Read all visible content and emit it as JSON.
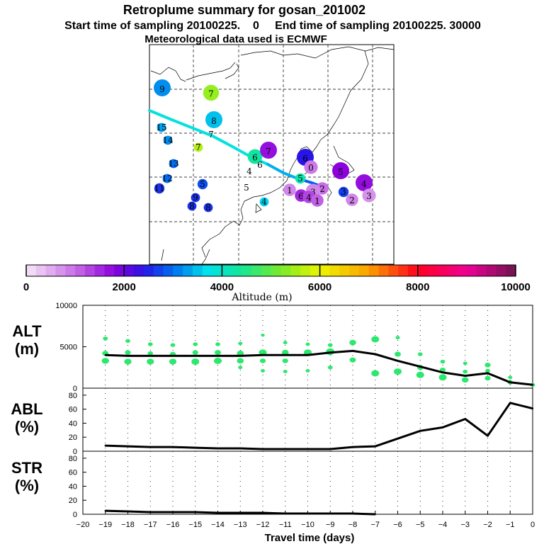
{
  "title": "Retroplume summary for gosan_201002",
  "subtitle": "Start time of sampling 20100225.    0     End time of sampling 20100225. 30000",
  "met_line": "Meteorological data used is ECMWF",
  "colorbar": {
    "label": "Altitude (m)",
    "ticks": [
      "0",
      "2000",
      "4000",
      "6000",
      "8000",
      "10000"
    ],
    "range": [
      0,
      10000
    ]
  },
  "map": {
    "labels": [
      {
        "text": "9",
        "alt": 3200,
        "r": 1.0
      },
      {
        "text": "7",
        "alt": 5400,
        "r": 0.9
      },
      {
        "text": "8",
        "alt": 3500,
        "r": 1.0
      },
      {
        "text": "15",
        "alt": 3300,
        "r": 0.3
      },
      {
        "text": "7",
        "alt": 4000,
        "r": 0.0
      },
      {
        "text": "14",
        "alt": 3200,
        "r": 0.3
      },
      {
        "text": "7",
        "alt": 5600,
        "r": 0.3
      },
      {
        "text": "6",
        "alt": 4300,
        "r": 0.8
      },
      {
        "text": "7",
        "alt": 1700,
        "r": 1.0
      },
      {
        "text": "6",
        "alt": 4000,
        "r": 0.0
      },
      {
        "text": "6",
        "alt": 2400,
        "r": 1.0
      },
      {
        "text": "0",
        "alt": 900,
        "r": 0.7
      },
      {
        "text": "5",
        "alt": 1800,
        "r": 1.0
      },
      {
        "text": "4",
        "alt": 1700,
        "r": 1.0
      },
      {
        "text": "13",
        "alt": 3000,
        "r": 0.3
      },
      {
        "text": "4",
        "alt": 4000,
        "r": 0.0
      },
      {
        "text": "12",
        "alt": 3000,
        "r": 0.3
      },
      {
        "text": "5",
        "alt": 4200,
        "r": 0.4
      },
      {
        "text": "5",
        "alt": 3900,
        "r": 0.0
      },
      {
        "text": "5",
        "alt": 2800,
        "r": 0.4
      },
      {
        "text": "11",
        "alt": 2600,
        "r": 0.4
      },
      {
        "text": "2",
        "alt": 1000,
        "r": 0.6
      },
      {
        "text": "3",
        "alt": 2700,
        "r": 0.4
      },
      {
        "text": "2",
        "alt": 800,
        "r": 0.6
      },
      {
        "text": "3",
        "alt": 700,
        "r": 0.7
      },
      {
        "text": "3",
        "alt": 800,
        "r": 0.8
      },
      {
        "text": "9",
        "alt": 2600,
        "r": 0.3
      },
      {
        "text": "4",
        "alt": 3600,
        "r": 0.3
      },
      {
        "text": "8",
        "alt": 2600,
        "r": 0.3
      },
      {
        "text": "8",
        "alt": 2600,
        "r": 0.3
      },
      {
        "text": "6",
        "alt": 1500,
        "r": 0.6
      },
      {
        "text": "4",
        "alt": 1300,
        "r": 0.6
      },
      {
        "text": "1",
        "alt": 1100,
        "r": 0.6
      },
      {
        "text": "1",
        "alt": 800,
        "r": 0.6
      }
    ]
  },
  "chart_data": [
    {
      "type": "scatter-line",
      "panel_label": "ALT\n(m)",
      "xlabel": "Travel time (days)",
      "ylim": [
        0,
        10000
      ],
      "yticks": [
        "0",
        "5000",
        "10000"
      ],
      "x": [
        -19,
        -18,
        -17,
        -16,
        -15,
        -14,
        -13,
        -12,
        -11,
        -10,
        -9,
        -8,
        -7,
        -6,
        -5,
        -4,
        -3,
        -2,
        -1,
        0
      ],
      "mean_altitude": [
        4000,
        3900,
        3900,
        3900,
        3900,
        3900,
        3900,
        4000,
        4000,
        4000,
        4300,
        4500,
        4100,
        3300,
        2600,
        1900,
        1500,
        1800,
        700,
        400
      ],
      "cluster_points": [
        {
          "x": -19,
          "y": 6000,
          "size": 0.4
        },
        {
          "x": -19,
          "y": 4200,
          "size": 0.7
        },
        {
          "x": -19,
          "y": 3300,
          "size": 0.9
        },
        {
          "x": -18,
          "y": 5700,
          "size": 0.4
        },
        {
          "x": -18,
          "y": 4300,
          "size": 0.6
        },
        {
          "x": -18,
          "y": 3200,
          "size": 0.9
        },
        {
          "x": -17,
          "y": 5300,
          "size": 0.4
        },
        {
          "x": -17,
          "y": 4200,
          "size": 0.5
        },
        {
          "x": -17,
          "y": 3200,
          "size": 0.9
        },
        {
          "x": -16,
          "y": 5200,
          "size": 0.4
        },
        {
          "x": -16,
          "y": 4100,
          "size": 0.6
        },
        {
          "x": -16,
          "y": 3200,
          "size": 0.9
        },
        {
          "x": -15,
          "y": 5300,
          "size": 0.4
        },
        {
          "x": -15,
          "y": 4300,
          "size": 0.6
        },
        {
          "x": -15,
          "y": 3200,
          "size": 1.0
        },
        {
          "x": -14,
          "y": 5300,
          "size": 0.4
        },
        {
          "x": -14,
          "y": 4300,
          "size": 0.7
        },
        {
          "x": -14,
          "y": 3300,
          "size": 1.0
        },
        {
          "x": -13,
          "y": 5400,
          "size": 0.3
        },
        {
          "x": -13,
          "y": 4200,
          "size": 0.8
        },
        {
          "x": -13,
          "y": 3300,
          "size": 0.8
        },
        {
          "x": -13,
          "y": 2500,
          "size": 0.3
        },
        {
          "x": -12,
          "y": 6400,
          "size": 0.2
        },
        {
          "x": -12,
          "y": 4300,
          "size": 1.0
        },
        {
          "x": -12,
          "y": 3300,
          "size": 0.6
        },
        {
          "x": -12,
          "y": 2100,
          "size": 0.3
        },
        {
          "x": -11,
          "y": 5500,
          "size": 0.3
        },
        {
          "x": -11,
          "y": 4300,
          "size": 0.8
        },
        {
          "x": -11,
          "y": 3300,
          "size": 0.6
        },
        {
          "x": -11,
          "y": 2000,
          "size": 0.3
        },
        {
          "x": -10,
          "y": 5300,
          "size": 0.3
        },
        {
          "x": -10,
          "y": 4300,
          "size": 1.0
        },
        {
          "x": -10,
          "y": 2100,
          "size": 0.3
        },
        {
          "x": -9,
          "y": 5200,
          "size": 0.4
        },
        {
          "x": -9,
          "y": 4400,
          "size": 1.1
        },
        {
          "x": -9,
          "y": 2500,
          "size": 0.4
        },
        {
          "x": -8,
          "y": 5500,
          "size": 0.8
        },
        {
          "x": -8,
          "y": 3400,
          "size": 0.7
        },
        {
          "x": -7,
          "y": 5900,
          "size": 1.0
        },
        {
          "x": -7,
          "y": 1800,
          "size": 1.0
        },
        {
          "x": -6,
          "y": 6100,
          "size": 0.3
        },
        {
          "x": -6,
          "y": 4100,
          "size": 0.7
        },
        {
          "x": -6,
          "y": 2000,
          "size": 1.0
        },
        {
          "x": -5,
          "y": 4100,
          "size": 0.4
        },
        {
          "x": -5,
          "y": 2500,
          "size": 0.7
        },
        {
          "x": -5,
          "y": 1600,
          "size": 1.0
        },
        {
          "x": -4,
          "y": 3200,
          "size": 0.4
        },
        {
          "x": -4,
          "y": 2200,
          "size": 0.6
        },
        {
          "x": -4,
          "y": 1300,
          "size": 1.0
        },
        {
          "x": -3,
          "y": 3000,
          "size": 0.3
        },
        {
          "x": -3,
          "y": 2000,
          "size": 0.4
        },
        {
          "x": -3,
          "y": 1000,
          "size": 0.8
        },
        {
          "x": -2,
          "y": 2800,
          "size": 0.6
        },
        {
          "x": -2,
          "y": 2100,
          "size": 0.4
        },
        {
          "x": -2,
          "y": 1200,
          "size": 0.6
        },
        {
          "x": -1,
          "y": 1300,
          "size": 0.3
        },
        {
          "x": -1,
          "y": 700,
          "size": 0.5
        },
        {
          "x": 0,
          "y": 400,
          "size": 0.4
        }
      ]
    },
    {
      "type": "line",
      "panel_label": "ABL\n(%)",
      "ylim": [
        0,
        90
      ],
      "yticks": [
        "0",
        "20",
        "40",
        "60",
        "80"
      ],
      "x": [
        -19,
        -18,
        -17,
        -16,
        -15,
        -14,
        -13,
        -12,
        -11,
        -10,
        -9,
        -8,
        -7,
        -6,
        -5,
        -4,
        -3,
        -2,
        -1,
        0
      ],
      "values": [
        8,
        7,
        6,
        6,
        5,
        4,
        4,
        3,
        3,
        3,
        3,
        6,
        7,
        18,
        29,
        34,
        46,
        22,
        69,
        61
      ]
    },
    {
      "type": "line",
      "panel_label": "STR\n(%)",
      "ylim": [
        0,
        90
      ],
      "yticks": [
        "0",
        "20",
        "40",
        "60",
        "80"
      ],
      "x": [
        -19,
        -18,
        -17,
        -16,
        -15,
        -14,
        -13,
        -12,
        -11,
        -10,
        -9,
        -8,
        -7
      ],
      "values": [
        5,
        4,
        3,
        3,
        3,
        2,
        2,
        2,
        1,
        1,
        1,
        1,
        0
      ],
      "xticks": [
        "-20",
        "-19",
        "-18",
        "-17",
        "-16",
        "-15",
        "-14",
        "-13",
        "-12",
        "-11",
        "-10",
        "-9",
        "-8",
        "-7",
        "-6",
        "-5",
        "-4",
        "-3",
        "-2",
        "-1",
        "0"
      ]
    }
  ]
}
